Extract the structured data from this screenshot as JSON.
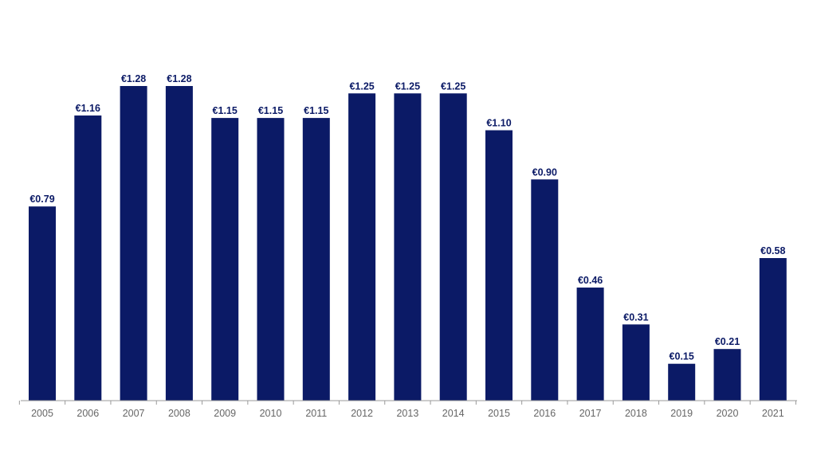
{
  "chart_data": {
    "type": "bar",
    "categories": [
      "2005",
      "2006",
      "2007",
      "2008",
      "2009",
      "2010",
      "2011",
      "2012",
      "2013",
      "2014",
      "2015",
      "2016",
      "2017",
      "2018",
      "2019",
      "2020",
      "2021"
    ],
    "values": [
      0.79,
      1.16,
      1.28,
      1.28,
      1.15,
      1.15,
      1.15,
      1.25,
      1.25,
      1.25,
      1.1,
      0.9,
      0.46,
      0.31,
      0.15,
      0.21,
      0.58
    ],
    "data_labels": [
      "€0.79",
      "€1.16",
      "€1.28",
      "€1.28",
      "€1.15",
      "€1.15",
      "€1.15",
      "€1.25",
      "€1.25",
      "€1.25",
      "€1.10",
      "€0.90",
      "€0.46",
      "€0.31",
      "€0.15",
      "€0.21",
      "€0.58"
    ],
    "title": "",
    "xlabel": "",
    "ylabel": "",
    "ylim": [
      0,
      1.3
    ],
    "grid": false,
    "legend": "none",
    "colors": {
      "bar": "#0b1a66",
      "label": "#0b1a66",
      "tick": "#666666",
      "axis": "#999999"
    }
  }
}
